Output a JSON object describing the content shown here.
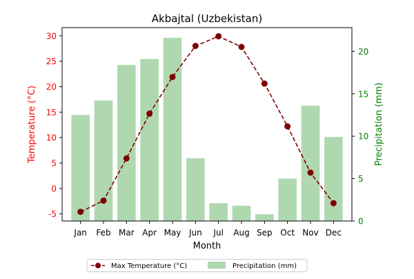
{
  "chart_data": {
    "type": "bar+line",
    "title": "Akbajtal (Uzbekistan)",
    "xlabel": "Month",
    "ylabel_left": "Temperature (°C)",
    "ylabel_right": "Precipitation (mm)",
    "categories": [
      "Jan",
      "Feb",
      "Mar",
      "Apr",
      "May",
      "Jun",
      "Jul",
      "Aug",
      "Sep",
      "Oct",
      "Nov",
      "Dec"
    ],
    "y_left": {
      "range": [
        -6.4,
        31.6
      ],
      "ticks": [
        -5,
        0,
        5,
        10,
        15,
        20,
        25,
        30
      ]
    },
    "y_right": {
      "range": [
        0,
        22.8
      ],
      "ticks": [
        0,
        5,
        10,
        15,
        20
      ]
    },
    "series": [
      {
        "name": "Max Temperature (°C)",
        "kind": "line",
        "axis": "left",
        "color": "#800000",
        "style": "dashed",
        "marker": "circle",
        "values": [
          -4.6,
          -2.4,
          5.9,
          14.7,
          21.9,
          28.0,
          29.9,
          27.8,
          20.6,
          12.2,
          3.1,
          -2.9
        ]
      },
      {
        "name": "Precipitation (mm)",
        "kind": "bar",
        "axis": "right",
        "color": "#b0d8b0",
        "values": [
          12.5,
          14.2,
          18.4,
          19.1,
          21.6,
          7.4,
          2.1,
          1.8,
          0.8,
          5.0,
          13.6,
          9.9
        ]
      }
    ],
    "legend_position": "bottom-center",
    "grid": false,
    "left_axis_color": "#ff0000",
    "right_axis_color": "#008000"
  }
}
